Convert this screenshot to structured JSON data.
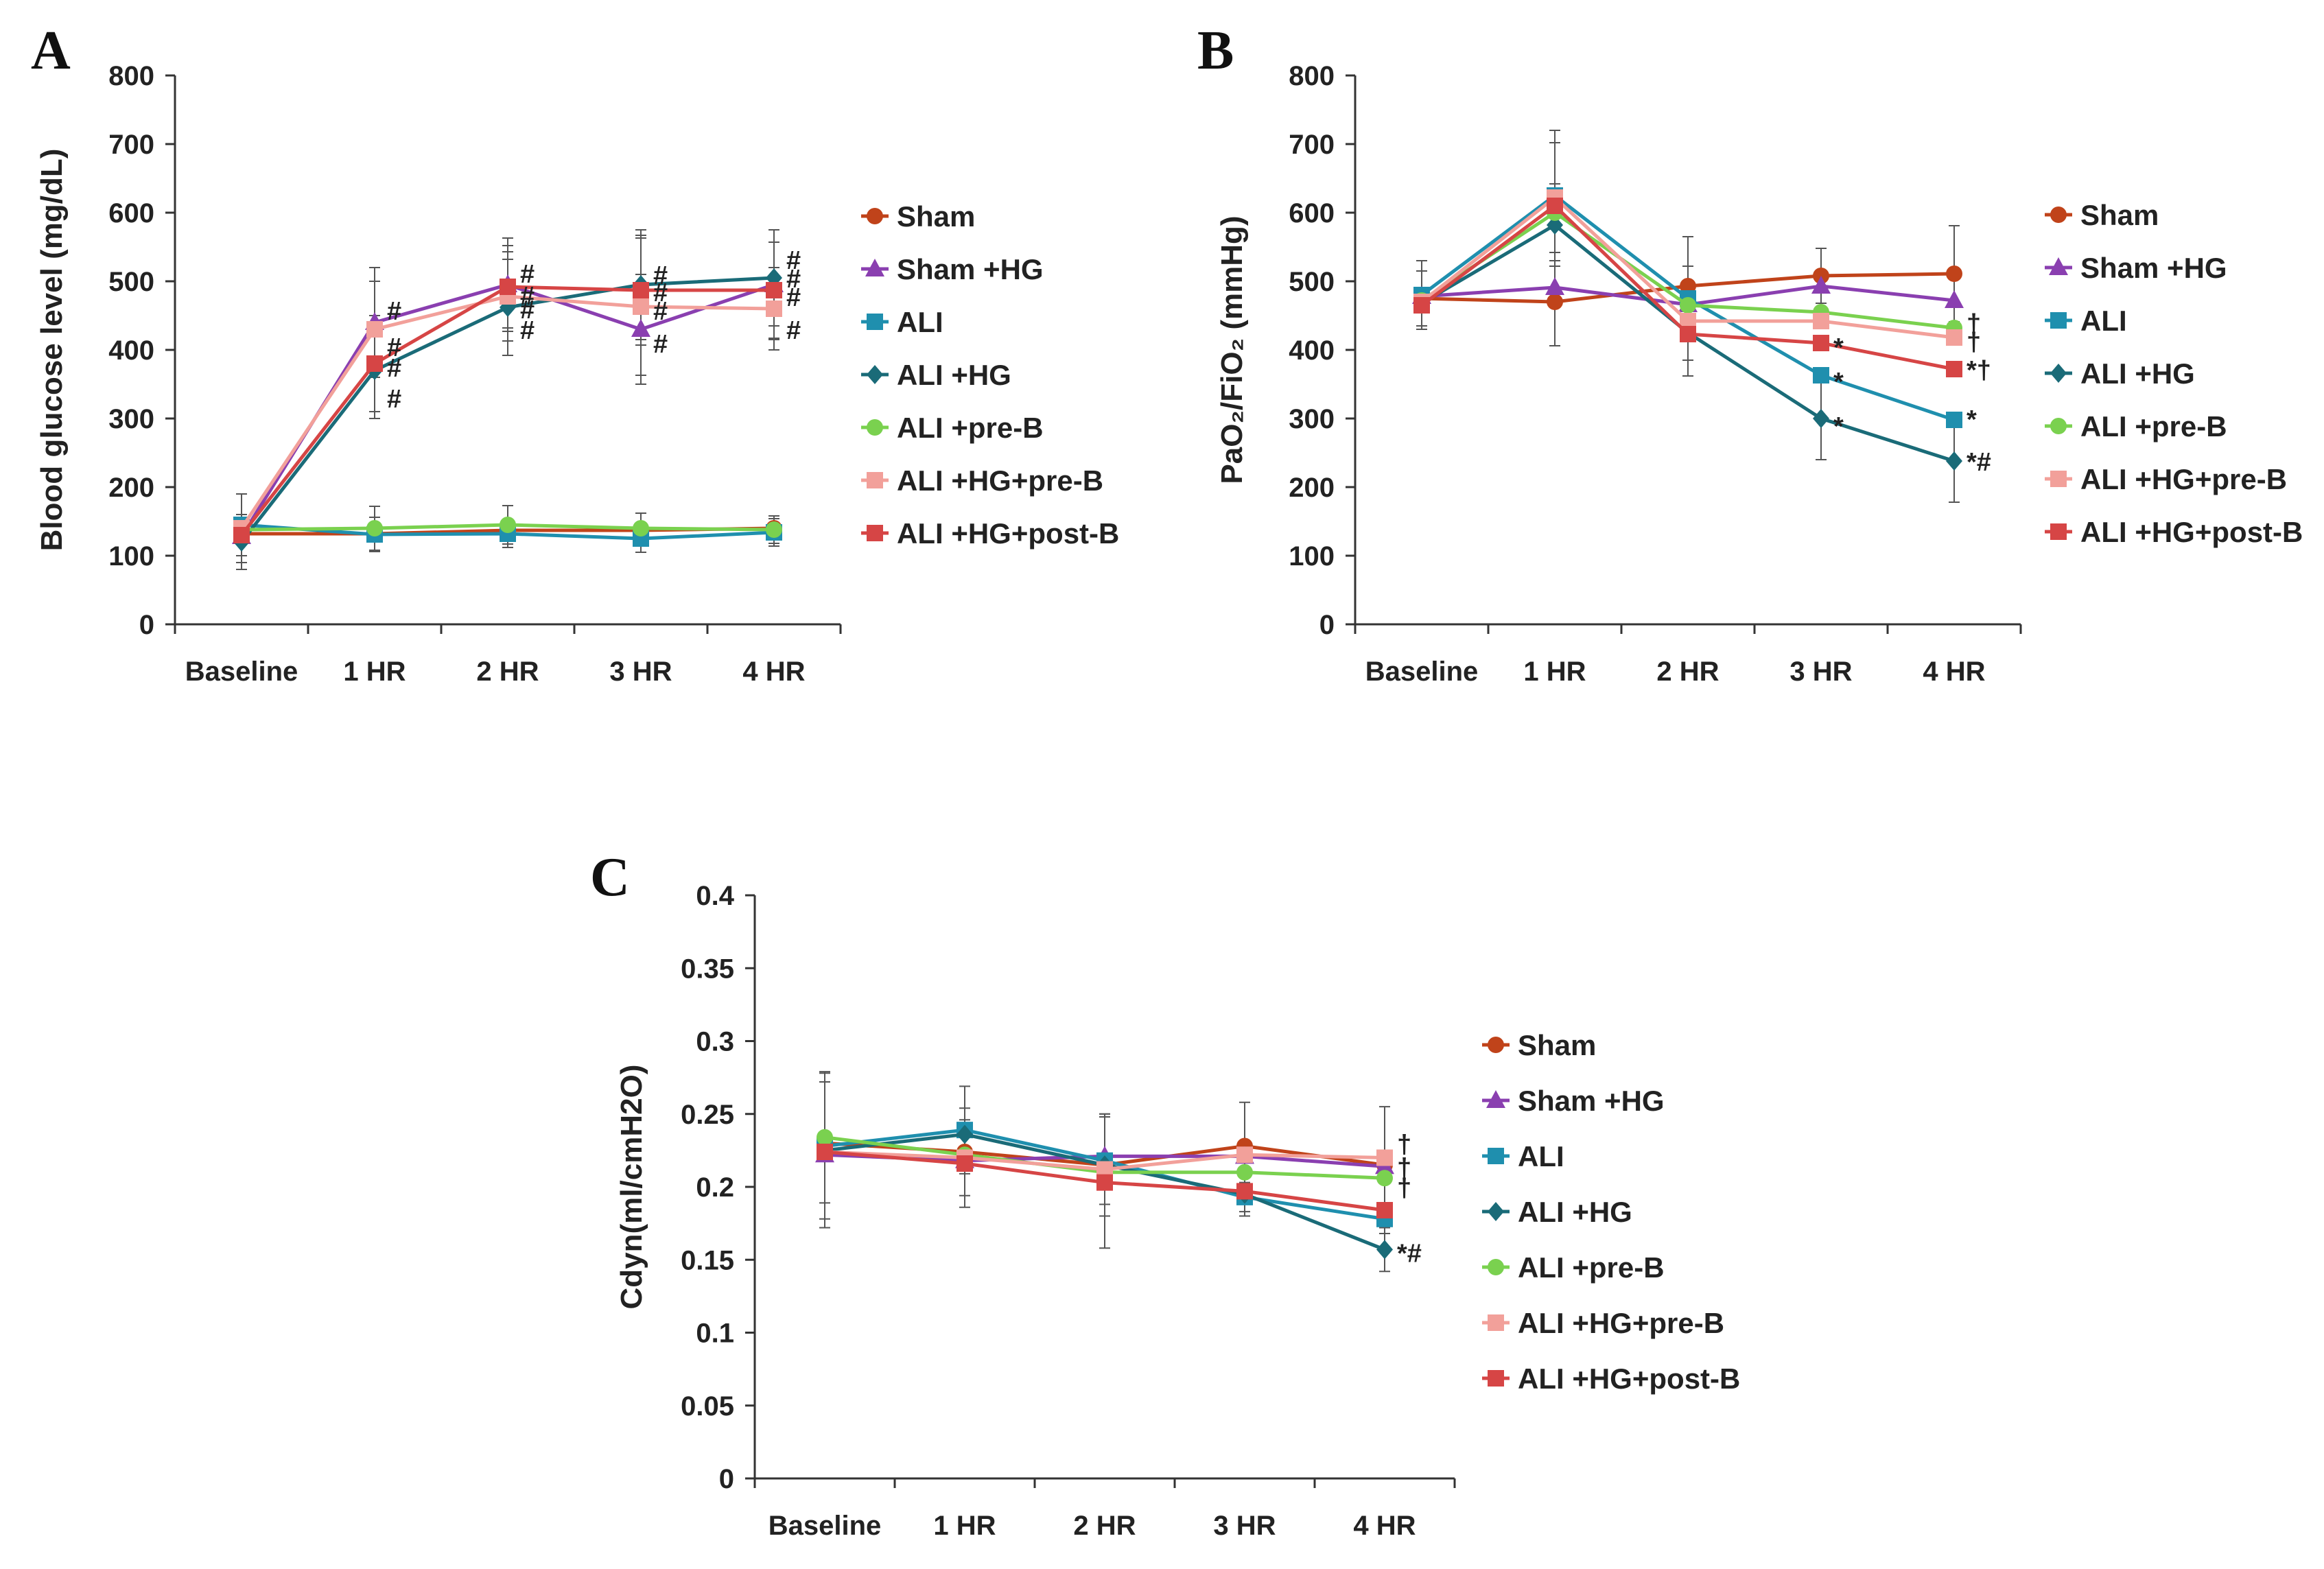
{
  "chart_data": [
    {
      "panel": "A",
      "type": "line",
      "title": "",
      "xlabel": "",
      "ylabel": "Blood glucose level (mg/dL)",
      "categories": [
        "Baseline",
        "1 HR",
        "2 HR",
        "3 HR",
        "4 HR"
      ],
      "ylim": [
        0,
        800
      ],
      "yticks": [
        "0",
        "100",
        "200",
        "300",
        "400",
        "500",
        "600",
        "700",
        "800"
      ],
      "legend_position": "right",
      "series": [
        {
          "name": "Sham",
          "color": "#c0431a",
          "marker": "circle",
          "values": [
            132,
            132,
            137,
            137,
            140
          ],
          "errors": [
            0,
            0,
            0,
            0,
            0
          ]
        },
        {
          "name": "Sham +HG",
          "color": "#8a3fb0",
          "marker": "triangle",
          "values": [
            128,
            440,
            495,
            430,
            495
          ],
          "errors": [
            0,
            80,
            68,
            80,
            80
          ]
        },
        {
          "name": "ALI",
          "color": "#1f8fae",
          "marker": "square",
          "values": [
            145,
            131,
            132,
            125,
            134
          ],
          "errors": [
            45,
            25,
            20,
            20,
            20
          ]
        },
        {
          "name": "ALI +HG",
          "color": "#1a6b78",
          "marker": "diamond",
          "values": [
            120,
            370,
            462,
            495,
            505
          ],
          "errors": [
            40,
            70,
            70,
            80,
            70
          ]
        },
        {
          "name": "ALI +pre-B",
          "color": "#7ad14f",
          "marker": "circle",
          "values": [
            138,
            140,
            145,
            140,
            138
          ],
          "errors": [
            0,
            32,
            28,
            22,
            20
          ]
        },
        {
          "name": "ALI +HG+pre-B",
          "color": "#f2a09a",
          "marker": "square",
          "values": [
            140,
            430,
            478,
            463,
            460
          ],
          "errors": [
            50,
            70,
            65,
            100,
            60
          ]
        },
        {
          "name": "ALI +HG+post-B",
          "color": "#d64545",
          "marker": "square",
          "values": [
            130,
            380,
            492,
            487,
            487
          ],
          "errors": [
            0,
            70,
            60,
            80,
            70
          ]
        }
      ],
      "annotations": [
        {
          "label": "#",
          "category": "1 HR",
          "value": 458
        },
        {
          "label": "#",
          "category": "1 HR",
          "value": 405
        },
        {
          "label": "#",
          "category": "1 HR",
          "value": 375
        },
        {
          "label": "#",
          "category": "1 HR",
          "value": 330
        },
        {
          "label": "#",
          "category": "2 HR",
          "value": 512
        },
        {
          "label": "#",
          "category": "2 HR",
          "value": 480
        },
        {
          "label": "#",
          "category": "2 HR",
          "value": 460
        },
        {
          "label": "#",
          "category": "2 HR",
          "value": 430
        },
        {
          "label": "#",
          "category": "3 HR",
          "value": 510
        },
        {
          "label": "#",
          "category": "3 HR",
          "value": 485
        },
        {
          "label": "#",
          "category": "3 HR",
          "value": 458
        },
        {
          "label": "#",
          "category": "3 HR",
          "value": 410
        },
        {
          "label": "#",
          "category": "4 HR",
          "value": 532
        },
        {
          "label": "#",
          "category": "4 HR",
          "value": 505
        },
        {
          "label": "#",
          "category": "4 HR",
          "value": 478
        },
        {
          "label": "#",
          "category": "4 HR",
          "value": 430
        }
      ]
    },
    {
      "panel": "B",
      "type": "line",
      "title": "",
      "xlabel": "",
      "ylabel": "PaO₂/FiO₂ (mmHg)",
      "categories": [
        "Baseline",
        "1 HR",
        "2 HR",
        "3 HR",
        "4 HR"
      ],
      "ylim": [
        0,
        800
      ],
      "yticks": [
        "0",
        "100",
        "200",
        "300",
        "400",
        "500",
        "600",
        "700",
        "800"
      ],
      "legend_position": "right",
      "series": [
        {
          "name": "Sham",
          "color": "#c0431a",
          "marker": "circle",
          "values": [
            475,
            470,
            493,
            508,
            511
          ],
          "errors": [
            40,
            0,
            0,
            40,
            70
          ]
        },
        {
          "name": "Sham +HG",
          "color": "#8a3fb0",
          "marker": "triangle",
          "values": [
            478,
            491,
            466,
            493,
            472
          ],
          "errors": [
            0,
            85,
            0,
            0,
            0
          ]
        },
        {
          "name": "ALI",
          "color": "#1f8fae",
          "marker": "square",
          "values": [
            480,
            625,
            475,
            363,
            298
          ],
          "errors": [
            50,
            95,
            90,
            0,
            0
          ]
        },
        {
          "name": "ALI +HG",
          "color": "#1a6b78",
          "marker": "diamond",
          "values": [
            468,
            582,
            425,
            300,
            238
          ],
          "errors": [
            0,
            60,
            0,
            60,
            60
          ]
        },
        {
          "name": "ALI +pre-B",
          "color": "#7ad14f",
          "marker": "circle",
          "values": [
            472,
            600,
            465,
            455,
            432
          ],
          "errors": [
            0,
            0,
            0,
            0,
            0
          ]
        },
        {
          "name": "ALI +HG+pre-B",
          "color": "#f2a09a",
          "marker": "square",
          "values": [
            470,
            622,
            442,
            442,
            418
          ],
          "errors": [
            0,
            80,
            80,
            0,
            0
          ]
        },
        {
          "name": "ALI +HG+post-B",
          "color": "#d64545",
          "marker": "square",
          "values": [
            465,
            610,
            423,
            410,
            372
          ],
          "errors": [
            0,
            0,
            0,
            0,
            0
          ]
        }
      ],
      "annotations": [
        {
          "label": "†",
          "category": "4 HR",
          "value": 440
        },
        {
          "label": "†",
          "category": "4 HR",
          "value": 413
        },
        {
          "label": "*†",
          "category": "4 HR",
          "value": 372
        },
        {
          "label": "*",
          "category": "4 HR",
          "value": 300
        },
        {
          "label": "*#",
          "category": "4 HR",
          "value": 238
        },
        {
          "label": "*",
          "category": "3 HR",
          "value": 405
        },
        {
          "label": "*",
          "category": "3 HR",
          "value": 355
        },
        {
          "label": "*",
          "category": "3 HR",
          "value": 290
        }
      ]
    },
    {
      "panel": "C",
      "type": "line",
      "title": "",
      "xlabel": "",
      "ylabel": "Cdyn(ml/cmH2O)",
      "categories": [
        "Baseline",
        "1 HR",
        "2 HR",
        "3 HR",
        "4 HR"
      ],
      "ylim": [
        0,
        0.4
      ],
      "yticks": [
        "0",
        "0.05",
        "0.1",
        "0.15",
        "0.2",
        "0.25",
        "0.3",
        "0.35",
        "0.4"
      ],
      "legend_position": "right",
      "series": [
        {
          "name": "Sham",
          "color": "#c0431a",
          "marker": "circle",
          "values": [
            0.23,
            0.224,
            0.215,
            0.228,
            0.215
          ],
          "errors": [
            0,
            0.03,
            0.035,
            0.03,
            0
          ]
        },
        {
          "name": "Sham +HG",
          "color": "#8a3fb0",
          "marker": "triangle",
          "values": [
            0.222,
            0.218,
            0.221,
            0.221,
            0.214
          ],
          "errors": [
            0.05,
            0,
            0,
            0,
            0
          ]
        },
        {
          "name": "ALI",
          "color": "#1f8fae",
          "marker": "square",
          "values": [
            0.228,
            0.239,
            0.218,
            0.193,
            0.178
          ],
          "errors": [
            0.05,
            0.03,
            0.03,
            0.01,
            0.01
          ]
        },
        {
          "name": "ALI +HG",
          "color": "#1a6b78",
          "marker": "diamond",
          "values": [
            0.225,
            0.236,
            0.215,
            0.195,
            0.157
          ],
          "errors": [
            0,
            0,
            0.035,
            0.015,
            0.015
          ]
        },
        {
          "name": "ALI +pre-B",
          "color": "#7ad14f",
          "marker": "circle",
          "values": [
            0.234,
            0.222,
            0.21,
            0.21,
            0.206
          ],
          "errors": [
            0.045,
            0,
            0,
            0,
            0
          ]
        },
        {
          "name": "ALI +HG+pre-B",
          "color": "#f2a09a",
          "marker": "square",
          "values": [
            0.224,
            0.22,
            0.212,
            0.222,
            0.22
          ],
          "errors": [
            0,
            0,
            0,
            0,
            0.035
          ]
        },
        {
          "name": "ALI +HG+post-B",
          "color": "#d64545",
          "marker": "square",
          "values": [
            0.224,
            0.216,
            0.203,
            0.197,
            0.184
          ],
          "errors": [
            0,
            0.03,
            0.045,
            0,
            0
          ]
        }
      ],
      "annotations": [
        {
          "label": "†",
          "category": "4 HR",
          "value": 0.23
        },
        {
          "label": "†",
          "category": "4 HR",
          "value": 0.214
        },
        {
          "label": "†",
          "category": "4 HR",
          "value": 0.2
        },
        {
          "label": "*#",
          "category": "4 HR",
          "value": 0.155
        }
      ]
    }
  ]
}
